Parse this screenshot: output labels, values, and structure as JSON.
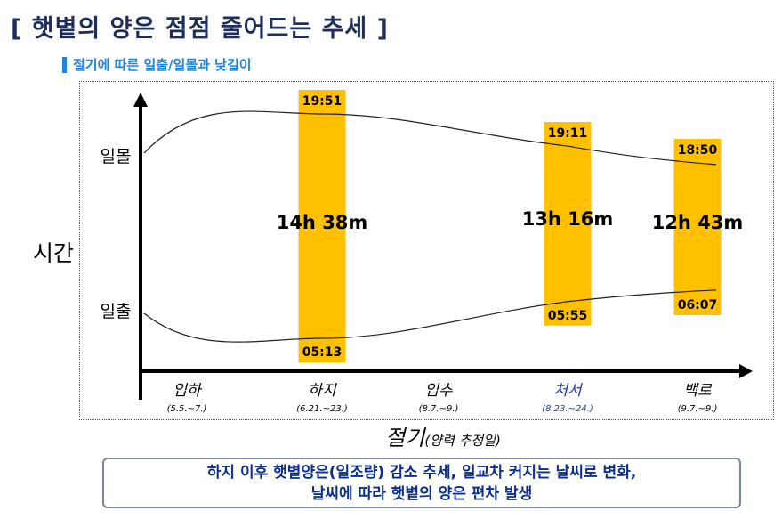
{
  "title": "[ 햇볕의 양은 점점 줄어드는 추세 ]",
  "subtitle": "절기에 따른 일출/일몰과 낮길이",
  "summary": {
    "line1": "하지 이후 햇볕양은(일조량) 감소 추세, 일교차 커지는 날씨로 변화,",
    "line2": "날씨에 따라 햇볕의 양은 편차 발생"
  },
  "colors": {
    "bar": "#ffc000",
    "axis": "#000000",
    "curve": "#222222",
    "title": "#1f2f5c",
    "accent": "#1c86e0",
    "highlight": "#1f3bb3"
  },
  "chart_data": {
    "type": "area",
    "title": "절기에 따른 일출/일몰과 낮길이",
    "ylabel": "시간",
    "xlabel_main": "절기",
    "xlabel_sub": "(양력 추정일)",
    "y_ticks": [
      "일몰",
      "일출"
    ],
    "categories": [
      {
        "name": "입하",
        "date": "(5.5.~7.)",
        "highlight": false
      },
      {
        "name": "하지",
        "date": "(6.21.~23.)",
        "highlight": false
      },
      {
        "name": "입추",
        "date": "(8.7.~9.)",
        "highlight": false
      },
      {
        "name": "처서",
        "date": "(8.23.~24.)",
        "highlight": true
      },
      {
        "name": "백로",
        "date": "(9.7.~9.)",
        "highlight": false
      }
    ],
    "series": [
      {
        "name": "일몰",
        "points": [
          {
            "category": "하지",
            "label": "19:51"
          },
          {
            "category": "처서",
            "label": "19:11"
          },
          {
            "category": "백로",
            "label": "18:50"
          }
        ]
      },
      {
        "name": "일출",
        "points": [
          {
            "category": "하지",
            "label": "05:13"
          },
          {
            "category": "처서",
            "label": "05:55"
          },
          {
            "category": "백로",
            "label": "06:07"
          }
        ]
      }
    ],
    "day_lengths": [
      {
        "category": "하지",
        "label": "14h 38m"
      },
      {
        "category": "처서",
        "label": "13h 16m"
      },
      {
        "category": "백로",
        "label": "12h 43m"
      }
    ]
  }
}
